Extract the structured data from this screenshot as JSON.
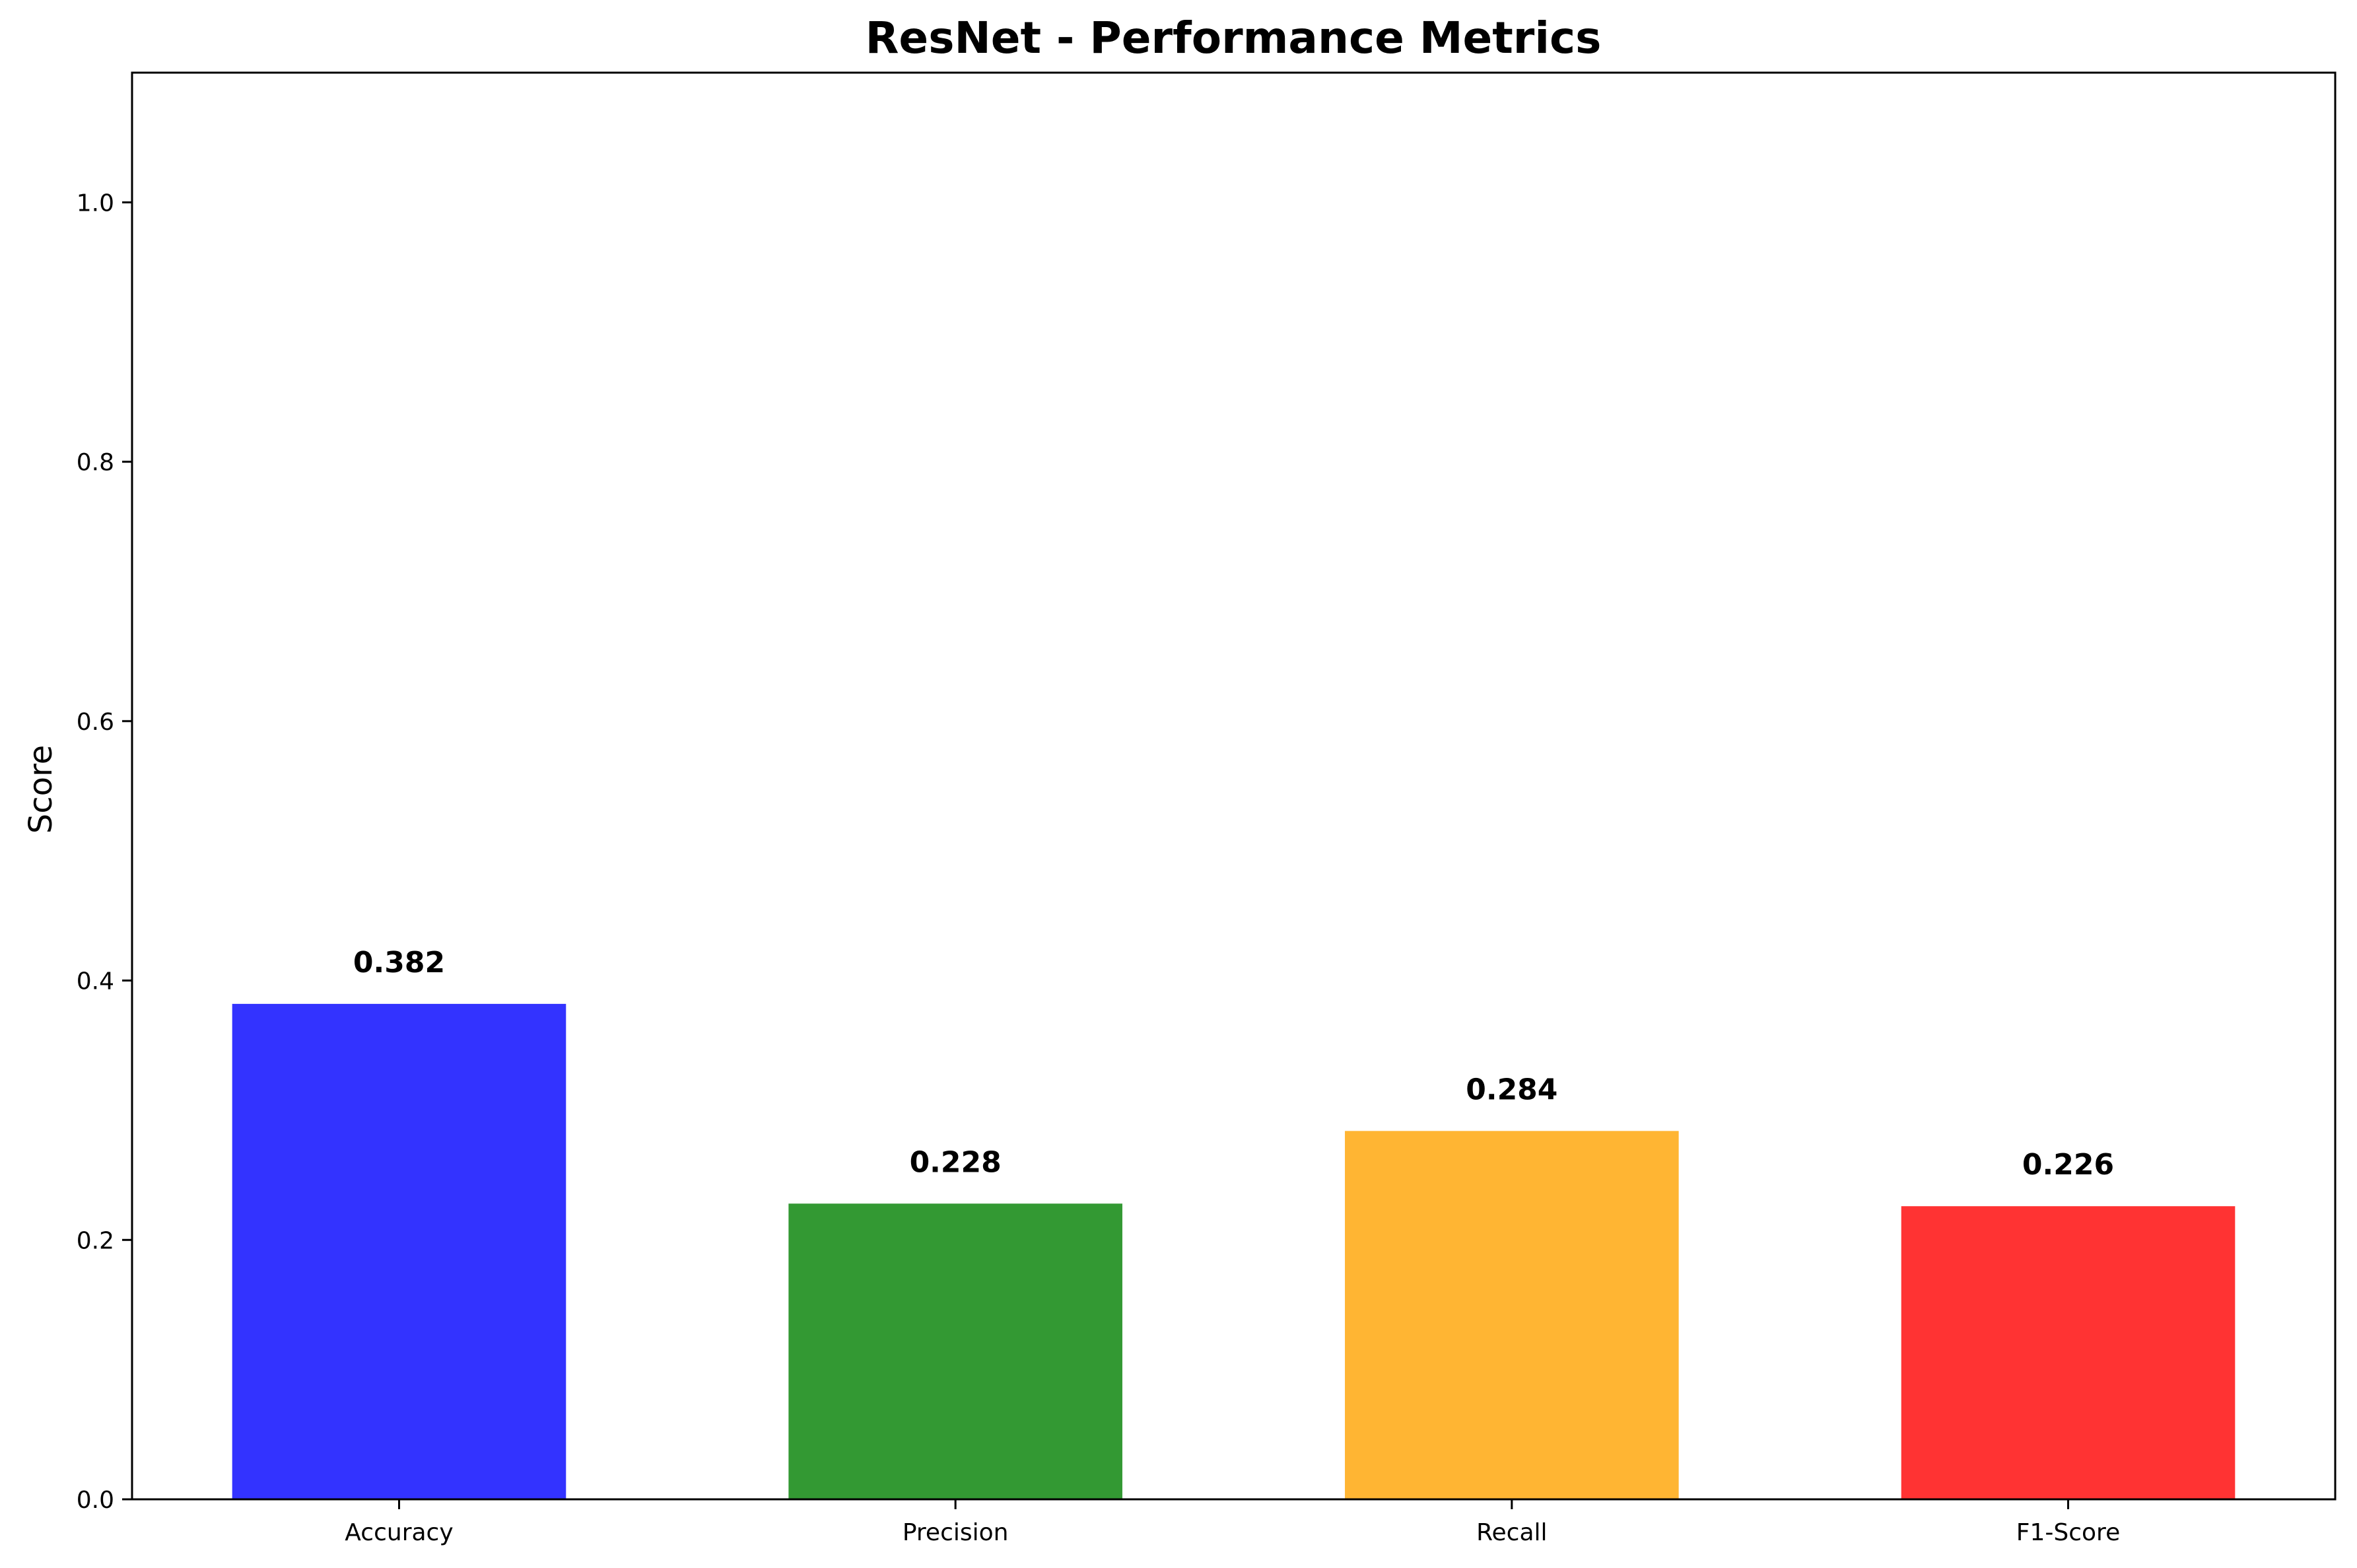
{
  "chart_data": {
    "type": "bar",
    "title": "ResNet - Performance Metrics",
    "xlabel": "",
    "ylabel": "Score",
    "categories": [
      "Accuracy",
      "Precision",
      "Recall",
      "F1-Score"
    ],
    "values": [
      0.382,
      0.228,
      0.284,
      0.226
    ],
    "value_labels": [
      "0.382",
      "0.228",
      "0.284",
      "0.226"
    ],
    "colors": [
      "#3333ff",
      "#339933",
      "#ffb533",
      "#ff3333"
    ],
    "ylim": [
      0,
      1.1
    ],
    "yticks": [
      0.0,
      0.2,
      0.4,
      0.6,
      0.8,
      1.0
    ],
    "ytick_labels": [
      "0.0",
      "0.2",
      "0.4",
      "0.6",
      "0.8",
      "1.0"
    ],
    "grid": false,
    "legend": "none"
  }
}
